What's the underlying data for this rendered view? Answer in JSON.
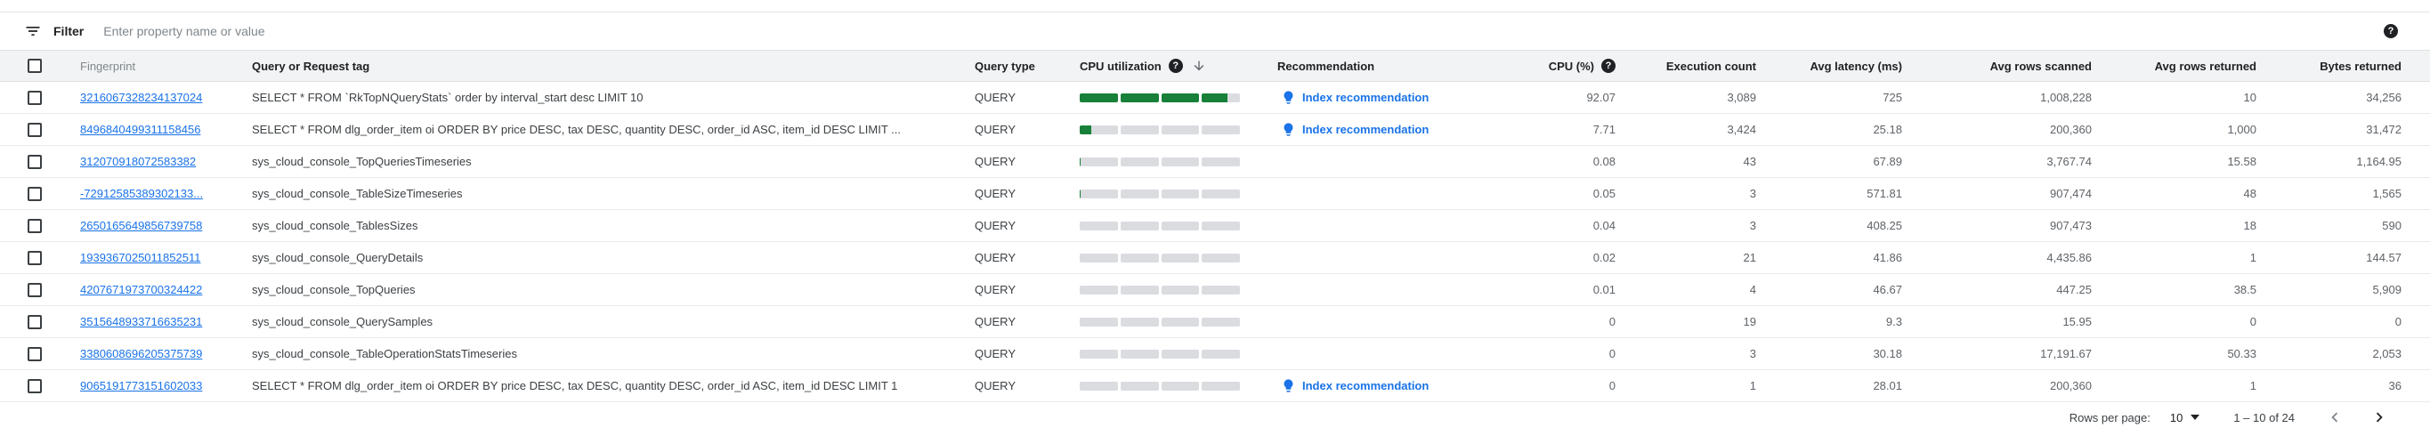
{
  "filter_bar": {
    "label": "Filter",
    "placeholder": "Enter property name or value"
  },
  "table": {
    "headers": {
      "fingerprint": "Fingerprint",
      "query": "Query or Request tag",
      "query_type": "Query type",
      "cpu_utilization": "CPU utilization",
      "recommendation": "Recommendation",
      "cpu_pct": "CPU (%)",
      "execution_count": "Execution count",
      "avg_latency": "Avg latency (ms)",
      "avg_rows_scanned": "Avg rows scanned",
      "avg_rows_returned": "Avg rows returned",
      "bytes_returned": "Bytes returned"
    },
    "sort": {
      "column": "cpu_utilization",
      "direction": "descending"
    },
    "rows": [
      {
        "fingerprint": "3216067328234137024",
        "query": "SELECT * FROM `RkTopNQueryStats` order by interval_start desc LIMIT 10",
        "query_type": "QUERY",
        "cpu_utilization_pct": 92.07,
        "recommendation": "Index recommendation",
        "cpu_pct": "92.07",
        "execution_count": "3,089",
        "avg_latency": "725",
        "avg_rows_scanned": "1,008,228",
        "avg_rows_returned": "10",
        "bytes_returned": "34,256"
      },
      {
        "fingerprint": "8496840499311158456",
        "query": "SELECT * FROM dlg_order_item oi ORDER BY price DESC, tax DESC, quantity DESC, order_id ASC, item_id DESC LIMIT ...",
        "query_type": "QUERY",
        "cpu_utilization_pct": 7.71,
        "recommendation": "Index recommendation",
        "cpu_pct": "7.71",
        "execution_count": "3,424",
        "avg_latency": "25.18",
        "avg_rows_scanned": "200,360",
        "avg_rows_returned": "1,000",
        "bytes_returned": "31,472"
      },
      {
        "fingerprint": "312070918072583382",
        "query": "sys_cloud_console_TopQueriesTimeseries",
        "query_type": "QUERY",
        "cpu_utilization_pct": 0.08,
        "recommendation": "",
        "cpu_pct": "0.08",
        "execution_count": "43",
        "avg_latency": "67.89",
        "avg_rows_scanned": "3,767.74",
        "avg_rows_returned": "15.58",
        "bytes_returned": "1,164.95"
      },
      {
        "fingerprint": "-72912585389302133...",
        "query": "sys_cloud_console_TableSizeTimeseries",
        "query_type": "QUERY",
        "cpu_utilization_pct": 0.05,
        "recommendation": "",
        "cpu_pct": "0.05",
        "execution_count": "3",
        "avg_latency": "571.81",
        "avg_rows_scanned": "907,474",
        "avg_rows_returned": "48",
        "bytes_returned": "1,565"
      },
      {
        "fingerprint": "2650165649856739758",
        "query": "sys_cloud_console_TablesSizes",
        "query_type": "QUERY",
        "cpu_utilization_pct": 0.04,
        "recommendation": "",
        "cpu_pct": "0.04",
        "execution_count": "3",
        "avg_latency": "408.25",
        "avg_rows_scanned": "907,473",
        "avg_rows_returned": "18",
        "bytes_returned": "590"
      },
      {
        "fingerprint": "1939367025011852511",
        "query": "sys_cloud_console_QueryDetails",
        "query_type": "QUERY",
        "cpu_utilization_pct": 0.02,
        "recommendation": "",
        "cpu_pct": "0.02",
        "execution_count": "21",
        "avg_latency": "41.86",
        "avg_rows_scanned": "4,435.86",
        "avg_rows_returned": "1",
        "bytes_returned": "144.57"
      },
      {
        "fingerprint": "4207671973700324422",
        "query": "sys_cloud_console_TopQueries",
        "query_type": "QUERY",
        "cpu_utilization_pct": 0.01,
        "recommendation": "",
        "cpu_pct": "0.01",
        "execution_count": "4",
        "avg_latency": "46.67",
        "avg_rows_scanned": "447.25",
        "avg_rows_returned": "38.5",
        "bytes_returned": "5,909"
      },
      {
        "fingerprint": "3515648933716635231",
        "query": "sys_cloud_console_QuerySamples",
        "query_type": "QUERY",
        "cpu_utilization_pct": 0,
        "recommendation": "",
        "cpu_pct": "0",
        "execution_count": "19",
        "avg_latency": "9.3",
        "avg_rows_scanned": "15.95",
        "avg_rows_returned": "0",
        "bytes_returned": "0"
      },
      {
        "fingerprint": "3380608696205375739",
        "query": "sys_cloud_console_TableOperationStatsTimeseries",
        "query_type": "QUERY",
        "cpu_utilization_pct": 0,
        "recommendation": "",
        "cpu_pct": "0",
        "execution_count": "3",
        "avg_latency": "30.18",
        "avg_rows_scanned": "17,191.67",
        "avg_rows_returned": "50.33",
        "bytes_returned": "2,053"
      },
      {
        "fingerprint": "9065191773151602033",
        "query": "SELECT * FROM dlg_order_item oi ORDER BY price DESC, tax DESC, quantity DESC, order_id ASC, item_id DESC LIMIT 1",
        "query_type": "QUERY",
        "cpu_utilization_pct": 0,
        "recommendation": "Index recommendation",
        "cpu_pct": "0",
        "execution_count": "1",
        "avg_latency": "28.01",
        "avg_rows_scanned": "200,360",
        "avg_rows_returned": "1",
        "bytes_returned": "36"
      }
    ]
  },
  "pagination": {
    "rows_per_page_label": "Rows per page:",
    "rows_per_page": "10",
    "range": "1 – 10 of 24"
  },
  "colors": {
    "link_blue": "#1a73e8",
    "bar_green": "#188038",
    "bar_gray": "#dadce0",
    "header_bg": "#f1f3f4"
  }
}
